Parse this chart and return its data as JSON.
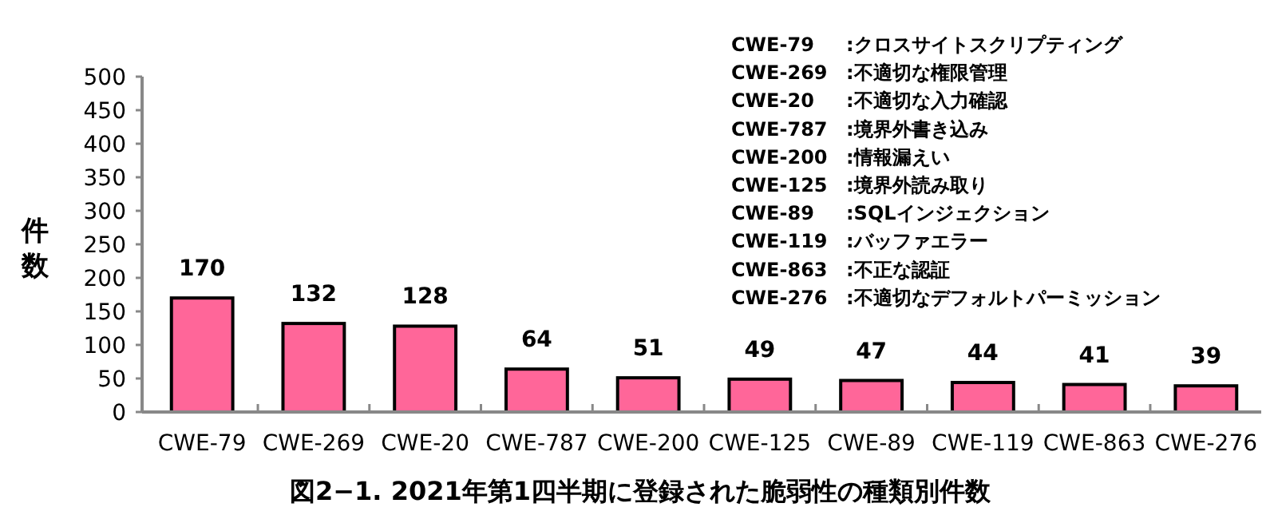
{
  "chart_data": {
    "type": "bar",
    "title": "図2−1. 2021年第1四半期に登録された脆弱性の種類別件数",
    "ylabel": "件数",
    "categories": [
      "CWE-79",
      "CWE-269",
      "CWE-20",
      "CWE-787",
      "CWE-200",
      "CWE-125",
      "CWE-89",
      "CWE-119",
      "CWE-863",
      "CWE-276"
    ],
    "values": [
      170,
      132,
      128,
      64,
      51,
      49,
      47,
      44,
      41,
      39
    ],
    "color": "#ff6699",
    "data_labels": true,
    "ylim": [
      0,
      500
    ],
    "yticks": [
      0,
      50,
      100,
      150,
      200,
      250,
      300,
      350,
      400,
      450,
      500
    ],
    "grid": false,
    "annotations": [
      "CWE-79　:クロスサイトスクリプティング",
      "CWE-269　:不適切な権限管理",
      "CWE-20　:不適切な入力確認",
      "CWE-787　:境界外書き込み",
      "CWE-200　:情報漏えい",
      "CWE-125　:境界外読み取り",
      "CWE-89　:SQLインジェクション",
      "CWE-119　:バッファエラー",
      "CWE-863　:不正な認証",
      "CWE-276　:不適切なデフォルトパーミッション"
    ]
  }
}
